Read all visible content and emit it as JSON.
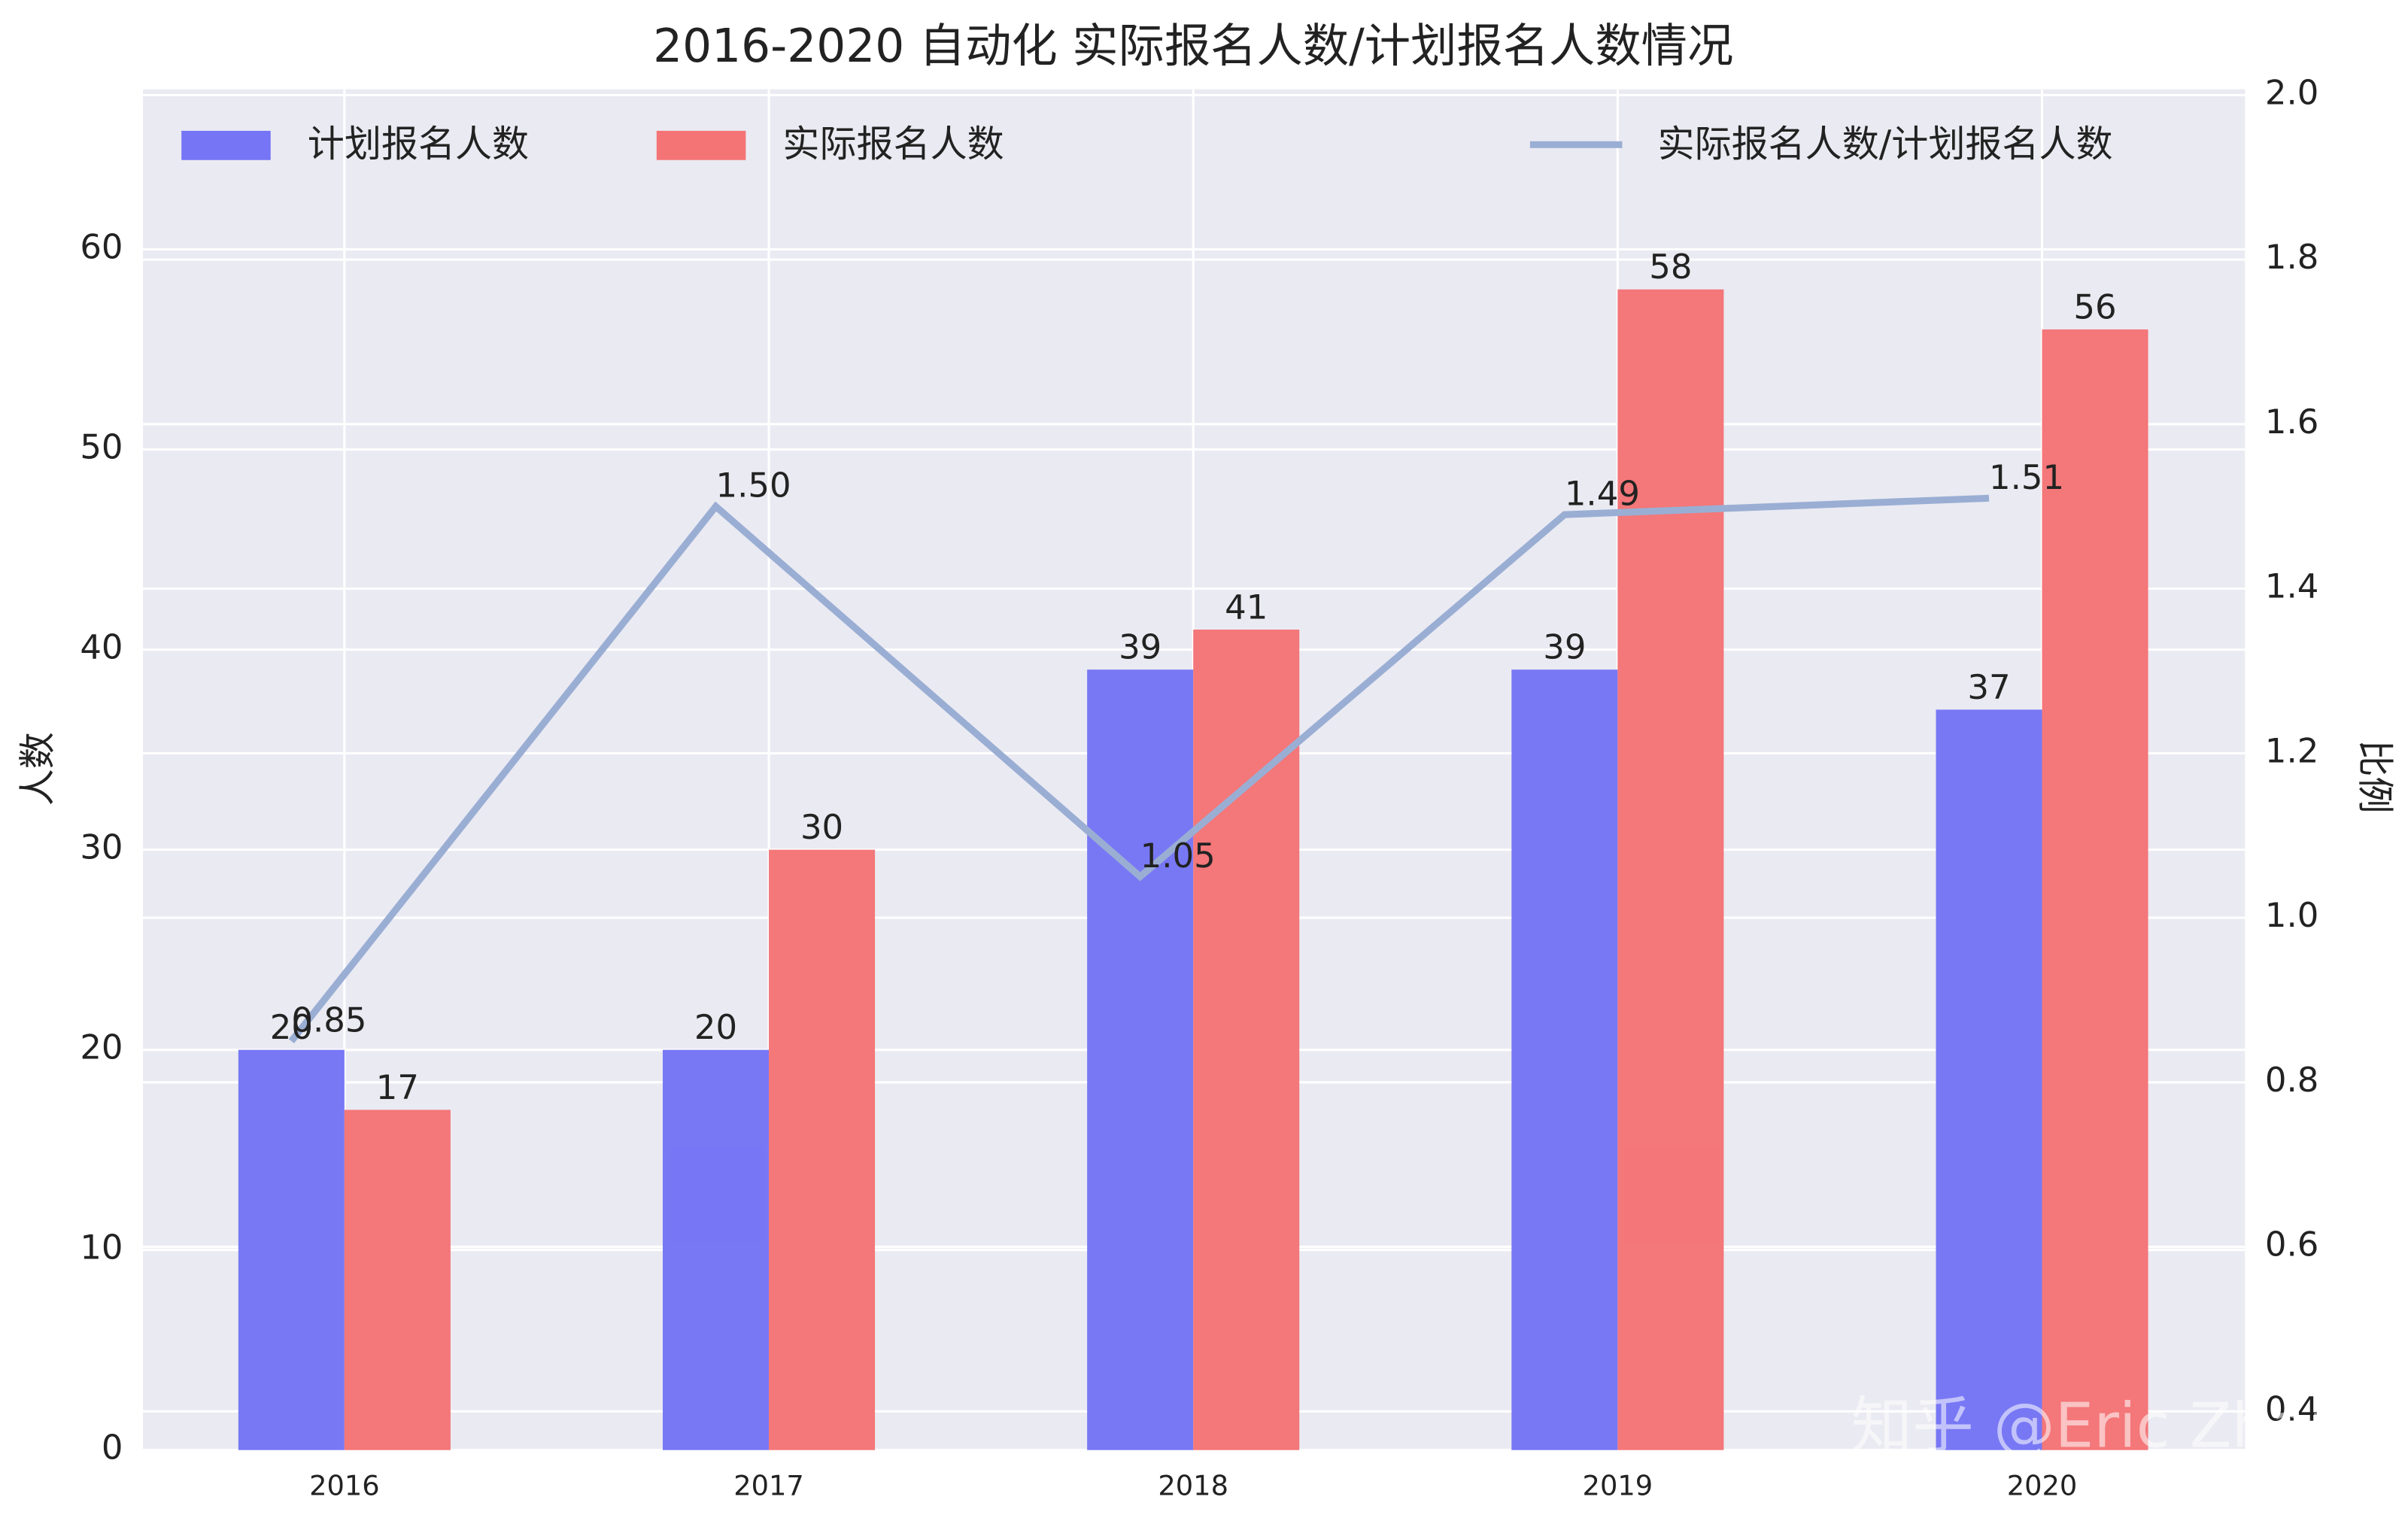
{
  "chart_data": {
    "type": "bar",
    "title": "2016-2020 自动化 实际报名人数/计划报名人数情况",
    "y_label": "人数",
    "y2_label": "比例",
    "watermark": "知乎 @Eric Zhai",
    "categories": [
      "2016",
      "2017",
      "2018",
      "2019",
      "2020"
    ],
    "series": [
      {
        "name": "计划报名人数",
        "color": "#7575f5",
        "values": [
          20,
          20,
          39,
          39,
          37
        ]
      },
      {
        "name": "实际报名人数",
        "color": "#f47476",
        "values": [
          17,
          30,
          41,
          58,
          56
        ]
      },
      {
        "name": "实际报名人数/计划报名人数",
        "type": "line",
        "axis": "y2",
        "color": "#9aaed4",
        "values": [
          0.85,
          1.5,
          1.05,
          1.49,
          1.51
        ],
        "value_labels": [
          "0.85",
          "1.50",
          "1.05",
          "1.49",
          "1.51"
        ]
      }
    ],
    "ylim": [
      0,
      68
    ],
    "yticks": [
      0,
      10,
      20,
      30,
      40,
      50,
      60
    ],
    "y2lim": [
      0.353,
      2.007
    ],
    "y2ticks": [
      0.4,
      0.6,
      0.8,
      {
        "value": 1,
        "label": "1.0"
      },
      1.2,
      1.4,
      1.6,
      1.8,
      {
        "value": 2,
        "label": "2.0"
      }
    ],
    "grid": true
  }
}
